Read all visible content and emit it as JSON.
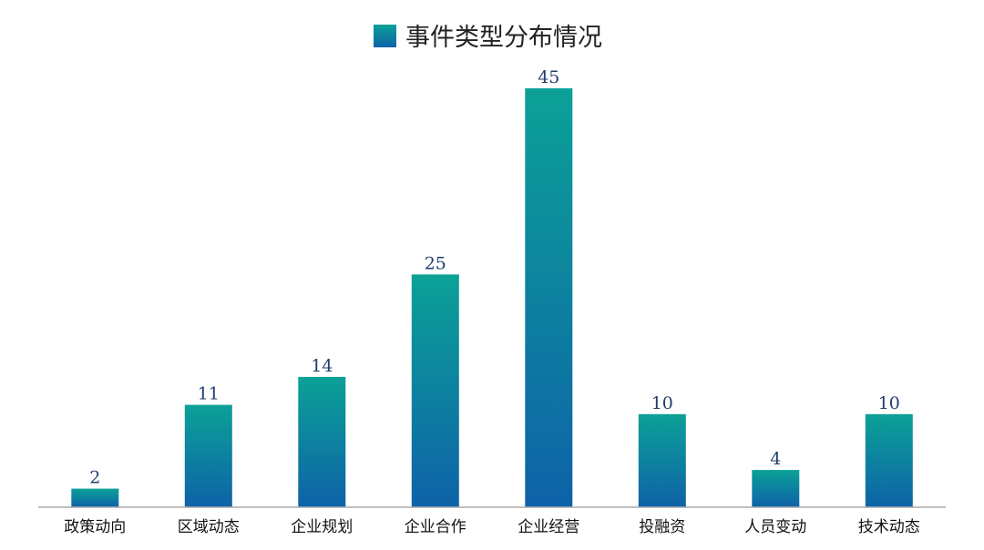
{
  "chart_data": {
    "type": "bar",
    "legend": {
      "position": "top-center",
      "entries": [
        "事件类型分布情况"
      ]
    },
    "series": [
      {
        "name": "事件类型分布情况",
        "values": [
          2,
          11,
          14,
          25,
          45,
          10,
          4,
          10
        ]
      }
    ],
    "categories": [
      "政策动向",
      "区域动态",
      "企业规划",
      "企业合作",
      "企业经营",
      "投融资",
      "人员变动",
      "技术动态"
    ],
    "data_labels": [
      "2",
      "11",
      "14",
      "25",
      "45",
      "10",
      "4",
      "10"
    ],
    "ylim": [
      0,
      45
    ],
    "grid": false,
    "colors": {
      "gradient_top": "#0ca197",
      "gradient_bottom": "#0e62a8",
      "axis": "#aaaaaa",
      "value_label": "#1f3f6e"
    }
  }
}
